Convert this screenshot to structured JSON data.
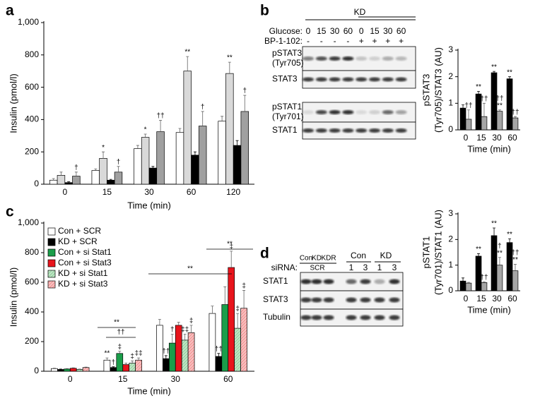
{
  "panel_labels": [
    "a",
    "b",
    "c",
    "d"
  ],
  "chart_data": [
    {
      "type": "bar",
      "xlabel": "Time (min)",
      "ylabel": [
        "Insulin (pmol/l)"
      ],
      "categories": [
        "0",
        "15",
        "30",
        "60",
        "120"
      ],
      "ylim": [
        0,
        1000
      ],
      "yticks": [
        0,
        200,
        400,
        600,
        800,
        {
          "value": 1000,
          "label": "1,000"
        }
      ],
      "series": [
        {
          "color": "#ffffff",
          "values": [
            25,
            85,
            220,
            320,
            390
          ],
          "errors": [
            10,
            10,
            20,
            25,
            30
          ],
          "annotations": [
            null,
            null,
            null,
            null,
            null
          ]
        },
        {
          "color": "#d9d9d9",
          "values": [
            55,
            160,
            290,
            700,
            685
          ],
          "errors": [
            20,
            40,
            20,
            90,
            70
          ],
          "annotations": [
            null,
            "*",
            "*",
            "**",
            "**"
          ]
        },
        {
          "color": "#000000",
          "values": [
            10,
            25,
            100,
            180,
            240
          ],
          "errors": [
            5,
            5,
            10,
            20,
            30
          ],
          "annotations": [
            null,
            null,
            null,
            null,
            null
          ]
        },
        {
          "color": "#a0a0a0",
          "values": [
            50,
            75,
            325,
            360,
            450
          ],
          "errors": [
            25,
            35,
            70,
            90,
            100
          ],
          "annotations": [
            "†",
            "†",
            "††",
            "†",
            "†"
          ]
        }
      ]
    },
    {
      "type": "bar",
      "xlabel": "Time (min)",
      "ylabel": [
        "Insulin (pmol/l)"
      ],
      "categories": [
        "0",
        "15",
        "30",
        "60"
      ],
      "ylim": [
        0,
        1000
      ],
      "yticks": [
        0,
        200,
        400,
        600,
        800,
        {
          "value": 1000,
          "label": "1,000"
        }
      ],
      "legend": "upper-left",
      "brackets": [
        "**",
        "††",
        "**",
        "**"
      ],
      "series": [
        {
          "name": "Con + SCR",
          "color": "#ffffff",
          "values": [
            18,
            75,
            310,
            390
          ],
          "errors": [
            3,
            15,
            40,
            50
          ],
          "annotations": [
            null,
            "**",
            null,
            null
          ]
        },
        {
          "name": "KD + SCR",
          "color": "#000000",
          "values": [
            12,
            25,
            85,
            100
          ],
          "errors": [
            3,
            5,
            20,
            20
          ],
          "annotations": [
            null,
            "†",
            "††",
            "††"
          ]
        },
        {
          "name": "Con + si Stat1",
          "color": "#1a9e4a",
          "values": [
            15,
            120,
            190,
            450
          ],
          "errors": [
            3,
            15,
            60,
            120
          ],
          "annotations": [
            null,
            "‡",
            "†",
            null
          ]
        },
        {
          "name": "Con + si Stat3",
          "color": "#e8141c",
          "values": [
            20,
            45,
            310,
            700
          ],
          "errors": [
            3,
            10,
            20,
            110
          ],
          "annotations": [
            null,
            null,
            null,
            "‡"
          ]
        },
        {
          "name": "KD + si Stat1",
          "color": "#9fd7a9",
          "hatch": true,
          "values": [
            12,
            55,
            210,
            290
          ],
          "errors": [
            3,
            15,
            40,
            100
          ],
          "annotations": [
            null,
            "‡",
            "‡‡",
            "‡"
          ]
        },
        {
          "name": "KD + si Stat3",
          "color": "#f4a0a0",
          "hatch": true,
          "values": [
            25,
            75,
            260,
            425
          ],
          "errors": [
            3,
            15,
            50,
            120
          ],
          "annotations": [
            null,
            "‡‡",
            "‡",
            "‡"
          ]
        }
      ]
    },
    {
      "type": "bar",
      "xlabel": "Time (min)",
      "ylabel": [
        "pSTAT3",
        "(Tyr705)/STAT3 (AU)"
      ],
      "categories": [
        "0",
        "15",
        "30",
        "60"
      ],
      "ylim": [
        0,
        3
      ],
      "yticks": [
        0,
        1,
        2,
        3
      ],
      "series": [
        {
          "color": "#000000",
          "values": [
            0.82,
            1.35,
            2.15,
            1.92
          ],
          "errors": [
            0.12,
            0.1,
            0.05,
            0.08
          ],
          "annotations": [
            null,
            "**",
            "**",
            "**"
          ]
        },
        {
          "color": "#a6a6a6",
          "values": [
            0.4,
            0.5,
            0.7,
            0.45
          ],
          "errors": [
            0.35,
            0.5,
            0.05,
            0.05
          ],
          "annotations": [
            "††",
            "††",
            [
              "††",
              "**"
            ],
            "††"
          ]
        }
      ]
    },
    {
      "type": "bar",
      "xlabel": "Time (min)",
      "ylabel": [
        "pSTAT1",
        "(Tyr701)/STAT1 (AU)"
      ],
      "categories": [
        "0",
        "15",
        "30",
        "60"
      ],
      "ylim": [
        0,
        3
      ],
      "yticks": [
        0,
        1,
        2,
        3
      ],
      "series": [
        {
          "color": "#000000",
          "values": [
            0.38,
            1.35,
            2.15,
            1.88
          ],
          "errors": [
            0.12,
            0.1,
            0.3,
            0.15
          ],
          "annotations": [
            null,
            "**",
            "**",
            "**"
          ]
        },
        {
          "color": "#a6a6a6",
          "values": [
            0.3,
            0.32,
            1.0,
            0.78
          ],
          "errors": [
            0.03,
            0.03,
            0.3,
            0.25
          ],
          "annotations": [
            null,
            "††",
            [
              "†",
              "**"
            ],
            [
              "††",
              "**"
            ]
          ]
        }
      ]
    }
  ],
  "blot_b": {
    "group": "KD",
    "glucose_label": "Glucose:",
    "glucose": [
      "0",
      "15",
      "30",
      "60",
      "0",
      "15",
      "30",
      "60"
    ],
    "inhibitor_label": "BP-1-102:",
    "inhibitor": [
      "-",
      "-",
      "-",
      "-",
      "+",
      "+",
      "+",
      "+"
    ],
    "rows": [
      [
        "pSTAT3",
        "(Tyr705)"
      ],
      [
        "STAT3"
      ],
      [
        "pSTAT1",
        "(Tyr701)"
      ],
      [
        "STAT1"
      ]
    ]
  },
  "blot_d": {
    "lanes": [
      "Con",
      "KD",
      "KDR"
    ],
    "lanes_group": "SCR",
    "sirna_label": "siRNA:",
    "groups": [
      {
        "name": "Con",
        "doses": [
          "1",
          "3"
        ]
      },
      {
        "name": "KD",
        "doses": [
          "1",
          "3"
        ]
      }
    ],
    "rows": [
      "STAT1",
      "STAT3",
      "Tubulin"
    ]
  }
}
